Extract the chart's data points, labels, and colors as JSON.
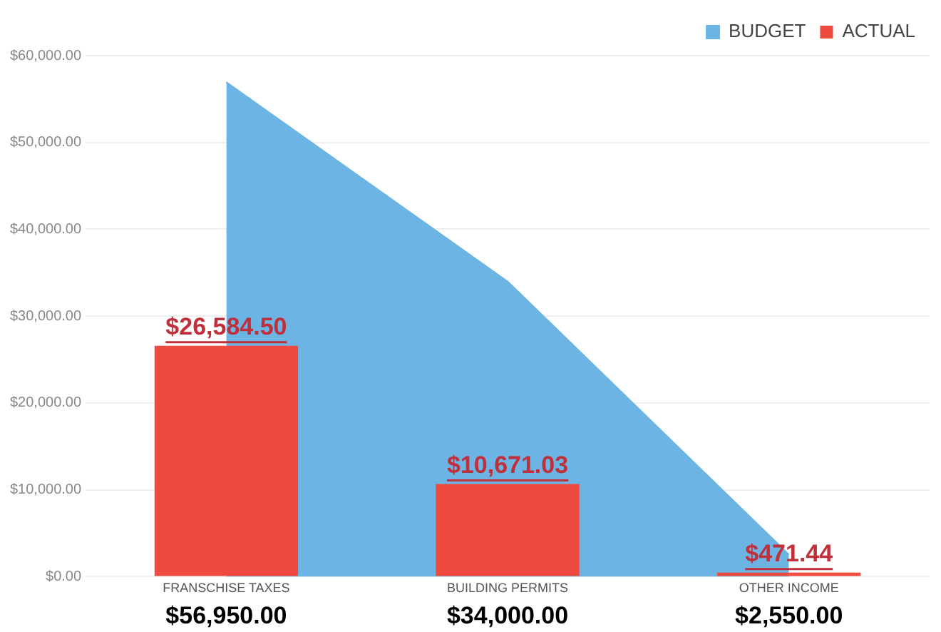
{
  "chart_data": {
    "type": "bar",
    "categories": [
      "FRANSCHISE TAXES",
      "BUILDING PERMITS",
      "OTHER INCOME"
    ],
    "series": [
      {
        "name": "BUDGET",
        "type": "area",
        "color": "#6cb4e4",
        "values": [
          56950,
          34000,
          2550
        ],
        "value_labels": [
          "$56,950.00",
          "$34,000.00",
          "$2,550.00"
        ]
      },
      {
        "name": "ACTUAL",
        "type": "bar",
        "color": "#ee4a3e",
        "values": [
          26584.5,
          10671.03,
          471.44
        ],
        "value_labels": [
          "$26,584.50",
          "$10,671.03",
          "$471.44"
        ]
      }
    ],
    "ylim": [
      0,
      60000
    ],
    "yticks": [
      {
        "value": 0,
        "label": "$0.00"
      },
      {
        "value": 10000,
        "label": "$10,000.00"
      },
      {
        "value": 20000,
        "label": "$20,000.00"
      },
      {
        "value": 30000,
        "label": "$30,000.00"
      },
      {
        "value": 40000,
        "label": "$40,000.00"
      },
      {
        "value": 50000,
        "label": "$50,000.00"
      },
      {
        "value": 60000,
        "label": "$60,000.00"
      }
    ],
    "grid": "y",
    "legend": "top right"
  }
}
